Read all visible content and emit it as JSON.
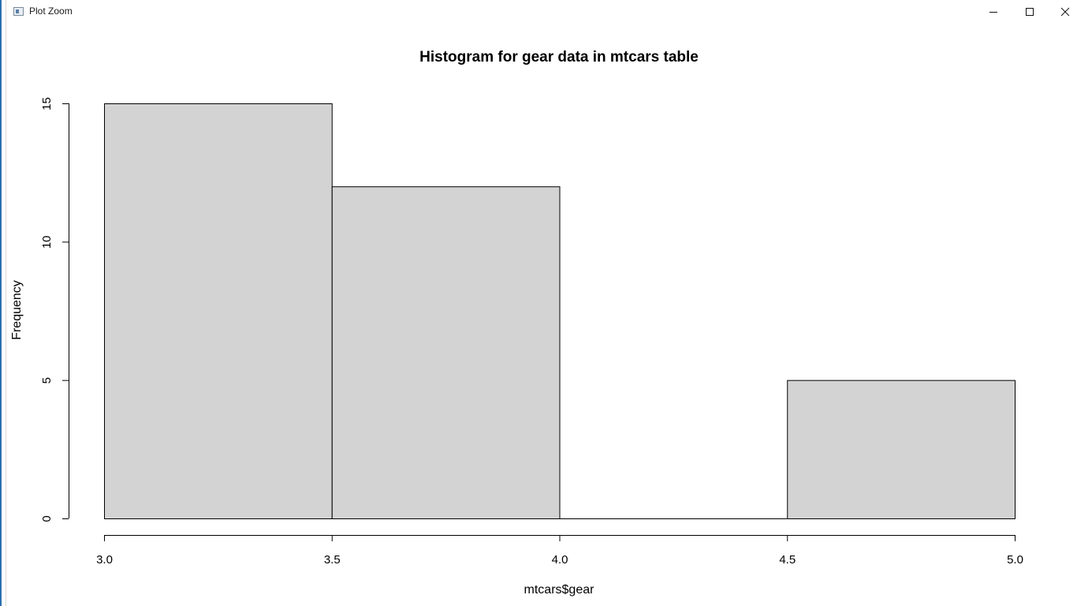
{
  "window": {
    "title": "Plot Zoom",
    "controls": {
      "minimize": "minimize-icon",
      "maximize": "maximize-icon",
      "close": "close-icon"
    }
  },
  "chart_data": {
    "type": "bar",
    "subtype": "histogram",
    "title": "Histogram for gear data in mtcars table",
    "xlabel": "mtcars$gear",
    "ylabel": "Frequency",
    "bins": [
      {
        "start": 3.0,
        "end": 3.5,
        "count": 15
      },
      {
        "start": 3.5,
        "end": 4.0,
        "count": 12
      },
      {
        "start": 4.0,
        "end": 4.5,
        "count": 0
      },
      {
        "start": 4.5,
        "end": 5.0,
        "count": 5
      }
    ],
    "xlim": [
      3.0,
      5.0
    ],
    "ylim": [
      0,
      15
    ],
    "xticks": [
      {
        "value": 3.0,
        "label": "3.0"
      },
      {
        "value": 3.5,
        "label": "3.5"
      },
      {
        "value": 4.0,
        "label": "4.0"
      },
      {
        "value": 4.5,
        "label": "4.5"
      },
      {
        "value": 5.0,
        "label": "5.0"
      }
    ],
    "yticks": [
      {
        "value": 0,
        "label": "0"
      },
      {
        "value": 5,
        "label": "5"
      },
      {
        "value": 10,
        "label": "10"
      },
      {
        "value": 15,
        "label": "15"
      }
    ],
    "bar_fill": "#d3d3d3",
    "bar_stroke": "#000000",
    "grid": false
  }
}
